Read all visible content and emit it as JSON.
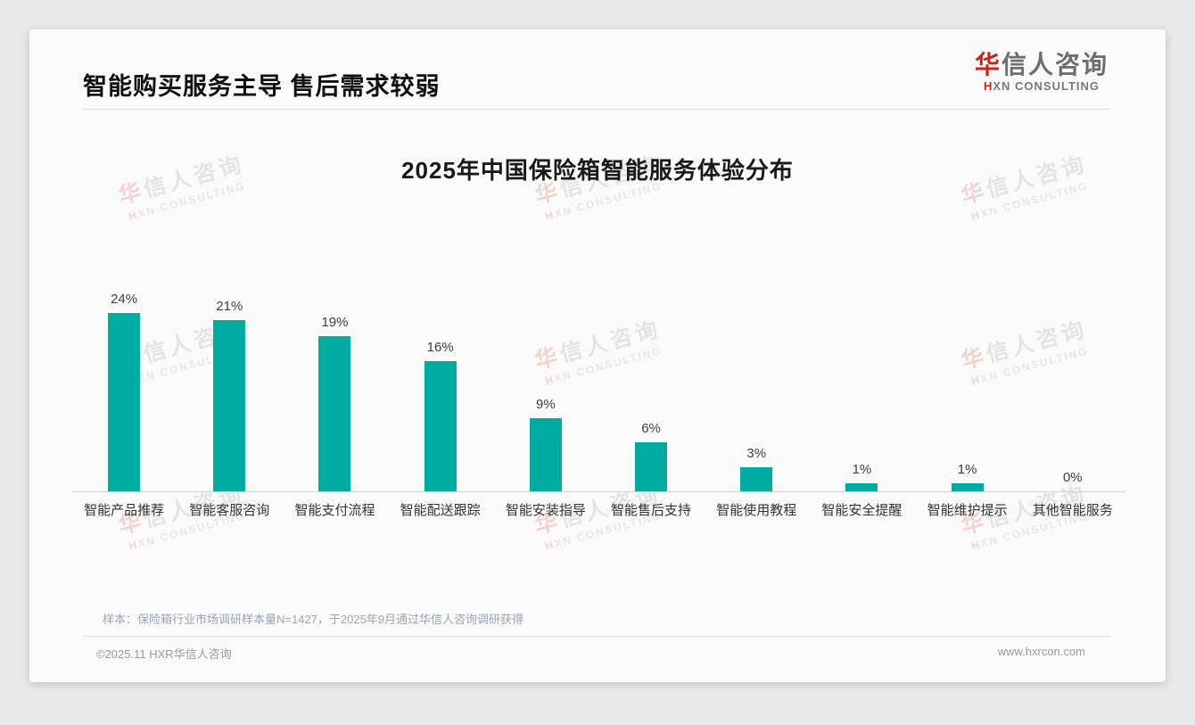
{
  "header": {
    "title": "智能购买服务主导 售后需求较弱"
  },
  "logo": {
    "cn_first": "华",
    "cn_rest": "信人咨询",
    "en_first": "H",
    "en_rest": "XN CONSULTING"
  },
  "watermark": {
    "line1_first": "华",
    "line1_rest": "信人咨询",
    "line2_first": "H",
    "line2_rest": "XN CONSULTING"
  },
  "chart_data": {
    "type": "bar",
    "title": "2025年中国保险箱智能服务体验分布",
    "categories": [
      "智能产品推荐",
      "智能客服咨询",
      "智能支付流程",
      "智能配送跟踪",
      "智能安装指导",
      "智能售后支持",
      "智能使用教程",
      "智能安全提醒",
      "智能维护提示",
      "其他智能服务"
    ],
    "values": [
      24,
      21,
      19,
      16,
      9,
      6,
      3,
      1,
      1,
      0
    ],
    "value_labels": [
      "24%",
      "21%",
      "19%",
      "16%",
      "9%",
      "6%",
      "3%",
      "1%",
      "1%",
      "0%"
    ],
    "unit": "%",
    "xlabel": "",
    "ylabel": "",
    "ylim": [
      0,
      26
    ],
    "grid": false,
    "legend": "none",
    "bar_color": "#00ACA2"
  },
  "note": "样本：保险箱行业市场调研样本量N=1427，于2025年9月通过华信人咨询调研获得",
  "footer": {
    "left": "©2025.11 HXR华信人咨询",
    "right": "www.hxrcon.com"
  },
  "colors": {
    "accent_teal": "#00ACA2",
    "logo_red": "#CC2318",
    "page_background": "#E9E9E9",
    "card_background": "#FAFAFA"
  }
}
